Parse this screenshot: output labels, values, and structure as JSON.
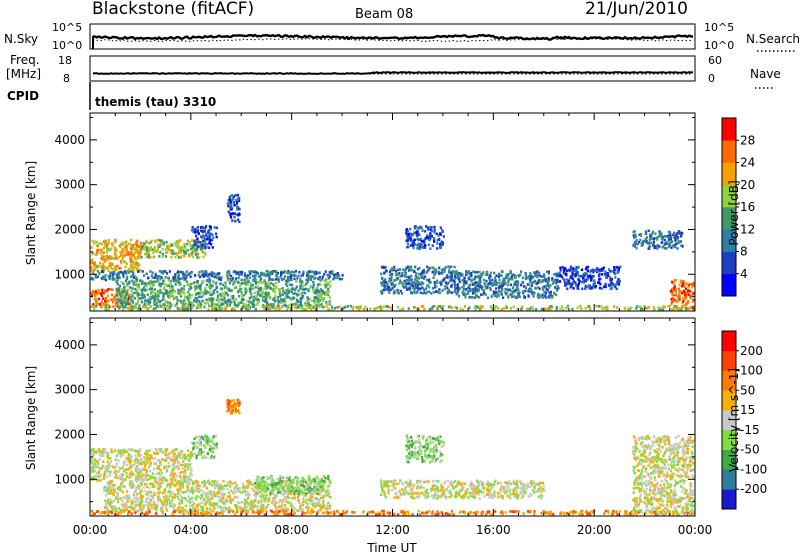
{
  "header": {
    "station": "Blackstone (fitACF)",
    "beam": "Beam 08",
    "date": "21/Jun/2010"
  },
  "top_panels": {
    "nsky_label": "N.Sky",
    "nsearch_label": "N.Search",
    "freq_label_1": "Freq.",
    "freq_label_2": "[MHz]",
    "nave_label": "Nave",
    "cpid_label": "CPID",
    "cpid_value": "themis (tau) 3310",
    "noise_ticks_left": [
      "10^5",
      "10^0"
    ],
    "noise_ticks_right": [
      "10^5",
      "10^0"
    ],
    "freq_ticks": [
      "18",
      "8"
    ],
    "nave_ticks": [
      "60",
      "0"
    ]
  },
  "chart_data": [
    {
      "type": "heatmap",
      "name": "power",
      "ylabel": "Slant Range [km]",
      "ylim": [
        180,
        4600
      ],
      "y_ticks": [
        "4000",
        "3000",
        "2000",
        "1000"
      ],
      "x_ticks": [
        "00:00",
        "04:00",
        "08:00",
        "12:00",
        "16:00",
        "20:00",
        "00:00"
      ],
      "xlim_hours": [
        0,
        24
      ],
      "colorbar": {
        "label": "Power [dB]",
        "ticks": [
          "28",
          "24",
          "20",
          "16",
          "12",
          "8",
          "4"
        ],
        "colors": [
          "#0000ff",
          "#1e3fbf",
          "#2e7fa6",
          "#3f9a6a",
          "#8fd33f",
          "#f5a000",
          "#ff6a00",
          "#ff0000"
        ]
      },
      "regions": [
        {
          "t0": 0.0,
          "t1": 2.0,
          "r0": 1100,
          "r1": 1800,
          "level": 5
        },
        {
          "t0": 2.0,
          "t1": 4.6,
          "r0": 1400,
          "r1": 1800,
          "level": 4
        },
        {
          "t0": 0.0,
          "t1": 1.5,
          "r0": 300,
          "r1": 700,
          "level": 6
        },
        {
          "t0": 0.0,
          "t1": 10.0,
          "r0": 900,
          "r1": 1100,
          "level": 2
        },
        {
          "t0": 1.0,
          "t1": 9.5,
          "r0": 300,
          "r1": 900,
          "level": 3
        },
        {
          "t0": 0.0,
          "t1": 24.0,
          "r0": 180,
          "r1": 320,
          "level": 4
        },
        {
          "t0": 4.0,
          "t1": 5.0,
          "r0": 1600,
          "r1": 2100,
          "level": 1
        },
        {
          "t0": 5.4,
          "t1": 5.9,
          "r0": 2200,
          "r1": 2800,
          "level": 1
        },
        {
          "t0": 11.5,
          "t1": 14.5,
          "r0": 600,
          "r1": 1200,
          "level": 2
        },
        {
          "t0": 14.5,
          "t1": 18.5,
          "r0": 500,
          "r1": 1100,
          "level": 2
        },
        {
          "t0": 12.5,
          "t1": 14.0,
          "r0": 1600,
          "r1": 2100,
          "level": 1
        },
        {
          "t0": 18.5,
          "t1": 21.0,
          "r0": 700,
          "r1": 1200,
          "level": 1
        },
        {
          "t0": 21.5,
          "t1": 23.5,
          "r0": 1600,
          "r1": 2000,
          "level": 2
        },
        {
          "t0": 23.0,
          "t1": 24.0,
          "r0": 200,
          "r1": 900,
          "level": 6
        }
      ]
    },
    {
      "type": "heatmap",
      "name": "velocity",
      "ylabel": "Slant Range [km]",
      "ylim": [
        180,
        4600
      ],
      "y_ticks": [
        "4000",
        "3000",
        "2000",
        "1000"
      ],
      "x_ticks": [
        "00:00",
        "04:00",
        "08:00",
        "12:00",
        "16:00",
        "20:00",
        "00:00"
      ],
      "xlim_hours": [
        0,
        24
      ],
      "xlabel": "Time UT",
      "colorbar": {
        "label": "Velocity [m s^-1]",
        "ticks": [
          "200",
          "100",
          "50",
          "15",
          "-15",
          "-50",
          "-100",
          "-200"
        ],
        "colors": [
          "#1a1acc",
          "#2f7f9a",
          "#3faa4a",
          "#7fdf3f",
          "#c8c8c8",
          "#f5b000",
          "#ff7a00",
          "#ff4000",
          "#ff0000"
        ]
      },
      "regions": [
        {
          "t0": 0.0,
          "t1": 4.0,
          "r0": 1000,
          "r1": 1700,
          "level": 4
        },
        {
          "t0": 0.5,
          "t1": 9.5,
          "r0": 300,
          "r1": 1000,
          "level": 4
        },
        {
          "t0": 6.5,
          "t1": 9.5,
          "r0": 700,
          "r1": 1100,
          "level": 3
        },
        {
          "t0": 0.0,
          "t1": 24.0,
          "r0": 180,
          "r1": 320,
          "level": 6
        },
        {
          "t0": 4.0,
          "t1": 5.0,
          "r0": 1500,
          "r1": 2000,
          "level": 3
        },
        {
          "t0": 5.4,
          "t1": 5.9,
          "r0": 2500,
          "r1": 2800,
          "level": 6
        },
        {
          "t0": 11.5,
          "t1": 18.0,
          "r0": 600,
          "r1": 1000,
          "level": 4
        },
        {
          "t0": 21.5,
          "t1": 24.0,
          "r0": 200,
          "r1": 2000,
          "level": 4
        },
        {
          "t0": 12.5,
          "t1": 14.0,
          "r0": 1400,
          "r1": 2000,
          "level": 3
        }
      ]
    }
  ]
}
